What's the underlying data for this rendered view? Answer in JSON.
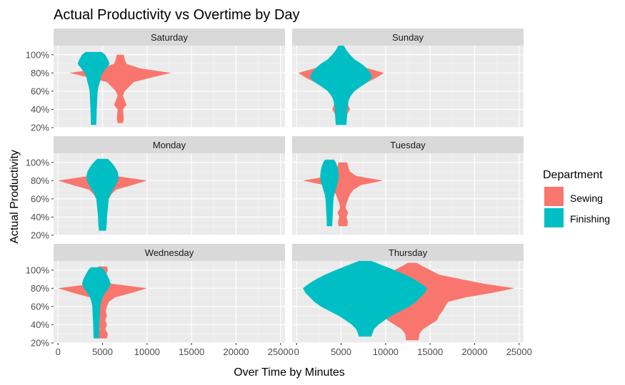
{
  "chart_data": {
    "type": "violin",
    "title": "Actual Productivity vs Overtime by Day",
    "xlabel": "Over Time by Minutes",
    "ylabel": "Actual Productivity",
    "xlim": [
      -500,
      25500
    ],
    "ylim": [
      0.2,
      1.1
    ],
    "x_ticks": [
      0,
      5000,
      10000,
      15000,
      20000,
      25000
    ],
    "x_tick_labels": [
      "0",
      "5000",
      "10000",
      "15000",
      "20000",
      "25000"
    ],
    "y_ticks": [
      0.2,
      0.4,
      0.6,
      0.8,
      1.0
    ],
    "y_tick_labels": [
      "20%",
      "40%",
      "60%",
      "80%",
      "100%"
    ],
    "legend": {
      "title": "Department",
      "position": "right",
      "entries": [
        {
          "name": "Sewing",
          "color": "#F8766D"
        },
        {
          "name": "Finishing",
          "color": "#00BFC4"
        }
      ]
    },
    "facets": [
      {
        "name": "Saturday",
        "violins": [
          {
            "series": "Sewing",
            "center": 7000,
            "profile": [
              [
                0.25,
                300
              ],
              [
                0.3,
                400
              ],
              [
                0.4,
                300
              ],
              [
                0.45,
                700
              ],
              [
                0.5,
                500
              ],
              [
                0.55,
                300
              ],
              [
                0.6,
                500
              ],
              [
                0.65,
                1000
              ],
              [
                0.7,
                1500
              ],
              [
                0.75,
                3500
              ],
              [
                0.8,
                5700
              ],
              [
                0.85,
                2200
              ],
              [
                0.9,
                700
              ],
              [
                0.95,
                500
              ],
              [
                1.0,
                400
              ]
            ]
          },
          {
            "series": "Finishing",
            "center": 4000,
            "profile": [
              [
                0.23,
                300
              ],
              [
                0.3,
                320
              ],
              [
                0.4,
                350
              ],
              [
                0.5,
                400
              ],
              [
                0.6,
                450
              ],
              [
                0.65,
                550
              ],
              [
                0.7,
                700
              ],
              [
                0.75,
                800
              ],
              [
                0.8,
                1000
              ],
              [
                0.85,
                1400
              ],
              [
                0.9,
                1800
              ],
              [
                0.95,
                1600
              ],
              [
                1.0,
                1300
              ],
              [
                1.03,
                900
              ]
            ]
          }
        ]
      },
      {
        "name": "Sunday",
        "violins": [
          {
            "series": "Sewing",
            "center": 5000,
            "profile": [
              [
                0.25,
                500
              ],
              [
                0.3,
                600
              ],
              [
                0.35,
                700
              ],
              [
                0.4,
                1000
              ],
              [
                0.45,
                800
              ],
              [
                0.5,
                700
              ],
              [
                0.55,
                800
              ],
              [
                0.6,
                1000
              ],
              [
                0.65,
                1700
              ],
              [
                0.7,
                3000
              ],
              [
                0.75,
                4000
              ],
              [
                0.8,
                4800
              ],
              [
                0.85,
                3000
              ],
              [
                0.9,
                1200
              ],
              [
                0.95,
                600
              ]
            ]
          },
          {
            "series": "Finishing",
            "center": 5000,
            "profile": [
              [
                0.23,
                600
              ],
              [
                0.3,
                650
              ],
              [
                0.4,
                700
              ],
              [
                0.5,
                850
              ],
              [
                0.55,
                1100
              ],
              [
                0.6,
                1500
              ],
              [
                0.65,
                2200
              ],
              [
                0.7,
                3000
              ],
              [
                0.75,
                3500
              ],
              [
                0.8,
                3300
              ],
              [
                0.85,
                2900
              ],
              [
                0.9,
                2300
              ],
              [
                0.95,
                1500
              ],
              [
                1.0,
                1000
              ],
              [
                1.05,
                600
              ],
              [
                1.1,
                300
              ]
            ]
          }
        ]
      },
      {
        "name": "Monday",
        "violins": [
          {
            "series": "Sewing",
            "center": 5000,
            "profile": [
              [
                0.27,
                400
              ],
              [
                0.3,
                450
              ],
              [
                0.35,
                500
              ],
              [
                0.4,
                400
              ],
              [
                0.45,
                300
              ],
              [
                0.5,
                400
              ],
              [
                0.55,
                500
              ],
              [
                0.6,
                700
              ],
              [
                0.65,
                1000
              ],
              [
                0.7,
                1500
              ],
              [
                0.75,
                3300
              ],
              [
                0.8,
                5000
              ],
              [
                0.85,
                1500
              ],
              [
                0.9,
                700
              ],
              [
                0.95,
                500
              ],
              [
                1.0,
                400
              ]
            ]
          },
          {
            "series": "Finishing",
            "center": 5000,
            "profile": [
              [
                0.25,
                400
              ],
              [
                0.3,
                450
              ],
              [
                0.4,
                500
              ],
              [
                0.5,
                600
              ],
              [
                0.6,
                700
              ],
              [
                0.65,
                900
              ],
              [
                0.7,
                1200
              ],
              [
                0.75,
                1500
              ],
              [
                0.8,
                1750
              ],
              [
                0.85,
                1800
              ],
              [
                0.9,
                1700
              ],
              [
                0.95,
                1400
              ],
              [
                1.0,
                1000
              ],
              [
                1.04,
                600
              ]
            ]
          }
        ]
      },
      {
        "name": "Tuesday",
        "violins": [
          {
            "series": "Sewing",
            "center": 5200,
            "profile": [
              [
                0.3,
                500
              ],
              [
                0.35,
                550
              ],
              [
                0.4,
                400
              ],
              [
                0.45,
                600
              ],
              [
                0.5,
                300
              ],
              [
                0.55,
                400
              ],
              [
                0.6,
                600
              ],
              [
                0.65,
                800
              ],
              [
                0.7,
                1200
              ],
              [
                0.75,
                2000
              ],
              [
                0.8,
                4500
              ],
              [
                0.85,
                1500
              ],
              [
                0.9,
                800
              ],
              [
                0.95,
                600
              ],
              [
                1.0,
                500
              ]
            ]
          },
          {
            "series": "Finishing",
            "center": 3700,
            "profile": [
              [
                0.3,
                300
              ],
              [
                0.35,
                320
              ],
              [
                0.4,
                340
              ],
              [
                0.5,
                400
              ],
              [
                0.6,
                450
              ],
              [
                0.65,
                550
              ],
              [
                0.7,
                700
              ],
              [
                0.75,
                850
              ],
              [
                0.8,
                1000
              ],
              [
                0.85,
                1050
              ],
              [
                0.9,
                1000
              ],
              [
                0.95,
                900
              ],
              [
                1.0,
                700
              ],
              [
                1.03,
                500
              ]
            ]
          }
        ]
      },
      {
        "name": "Wednesday",
        "violins": [
          {
            "series": "Sewing",
            "center": 5000,
            "profile": [
              [
                0.25,
                500
              ],
              [
                0.3,
                600
              ],
              [
                0.35,
                300
              ],
              [
                0.4,
                500
              ],
              [
                0.45,
                300
              ],
              [
                0.5,
                500
              ],
              [
                0.55,
                350
              ],
              [
                0.6,
                500
              ],
              [
                0.65,
                700
              ],
              [
                0.7,
                1400
              ],
              [
                0.75,
                3300
              ],
              [
                0.8,
                5000
              ],
              [
                0.85,
                1000
              ],
              [
                0.9,
                300
              ],
              [
                0.95,
                400
              ],
              [
                1.0,
                600
              ],
              [
                1.04,
                500
              ]
            ]
          },
          {
            "series": "Finishing",
            "center": 4300,
            "profile": [
              [
                0.25,
                300
              ],
              [
                0.3,
                320
              ],
              [
                0.4,
                350
              ],
              [
                0.5,
                400
              ],
              [
                0.6,
                450
              ],
              [
                0.65,
                550
              ],
              [
                0.7,
                700
              ],
              [
                0.75,
                1000
              ],
              [
                0.8,
                1400
              ],
              [
                0.85,
                1600
              ],
              [
                0.9,
                1450
              ],
              [
                0.95,
                1200
              ],
              [
                1.0,
                900
              ],
              [
                1.03,
                600
              ]
            ]
          }
        ]
      },
      {
        "name": "Thursday",
        "violins": [
          {
            "series": "Sewing",
            "center": 13000,
            "profile": [
              [
                0.23,
                700
              ],
              [
                0.3,
                800
              ],
              [
                0.35,
                1200
              ],
              [
                0.4,
                2000
              ],
              [
                0.45,
                2800
              ],
              [
                0.5,
                3000
              ],
              [
                0.55,
                3400
              ],
              [
                0.6,
                3700
              ],
              [
                0.65,
                4000
              ],
              [
                0.7,
                6000
              ],
              [
                0.75,
                9000
              ],
              [
                0.8,
                11500
              ],
              [
                0.85,
                8000
              ],
              [
                0.9,
                5500
              ],
              [
                0.95,
                3000
              ],
              [
                1.0,
                2000
              ],
              [
                1.05,
                1000
              ],
              [
                1.08,
                500
              ]
            ]
          },
          {
            "series": "Finishing",
            "center": 7700,
            "profile": [
              [
                0.27,
                700
              ],
              [
                0.3,
                800
              ],
              [
                0.35,
                1000
              ],
              [
                0.4,
                1500
              ],
              [
                0.45,
                2200
              ],
              [
                0.5,
                3000
              ],
              [
                0.55,
                4000
              ],
              [
                0.6,
                5000
              ],
              [
                0.65,
                5700
              ],
              [
                0.7,
                6200
              ],
              [
                0.75,
                6700
              ],
              [
                0.8,
                7000
              ],
              [
                0.85,
                6300
              ],
              [
                0.9,
                5500
              ],
              [
                0.95,
                4500
              ],
              [
                1.0,
                3300
              ],
              [
                1.05,
                2000
              ],
              [
                1.1,
                700
              ]
            ]
          }
        ]
      }
    ]
  }
}
